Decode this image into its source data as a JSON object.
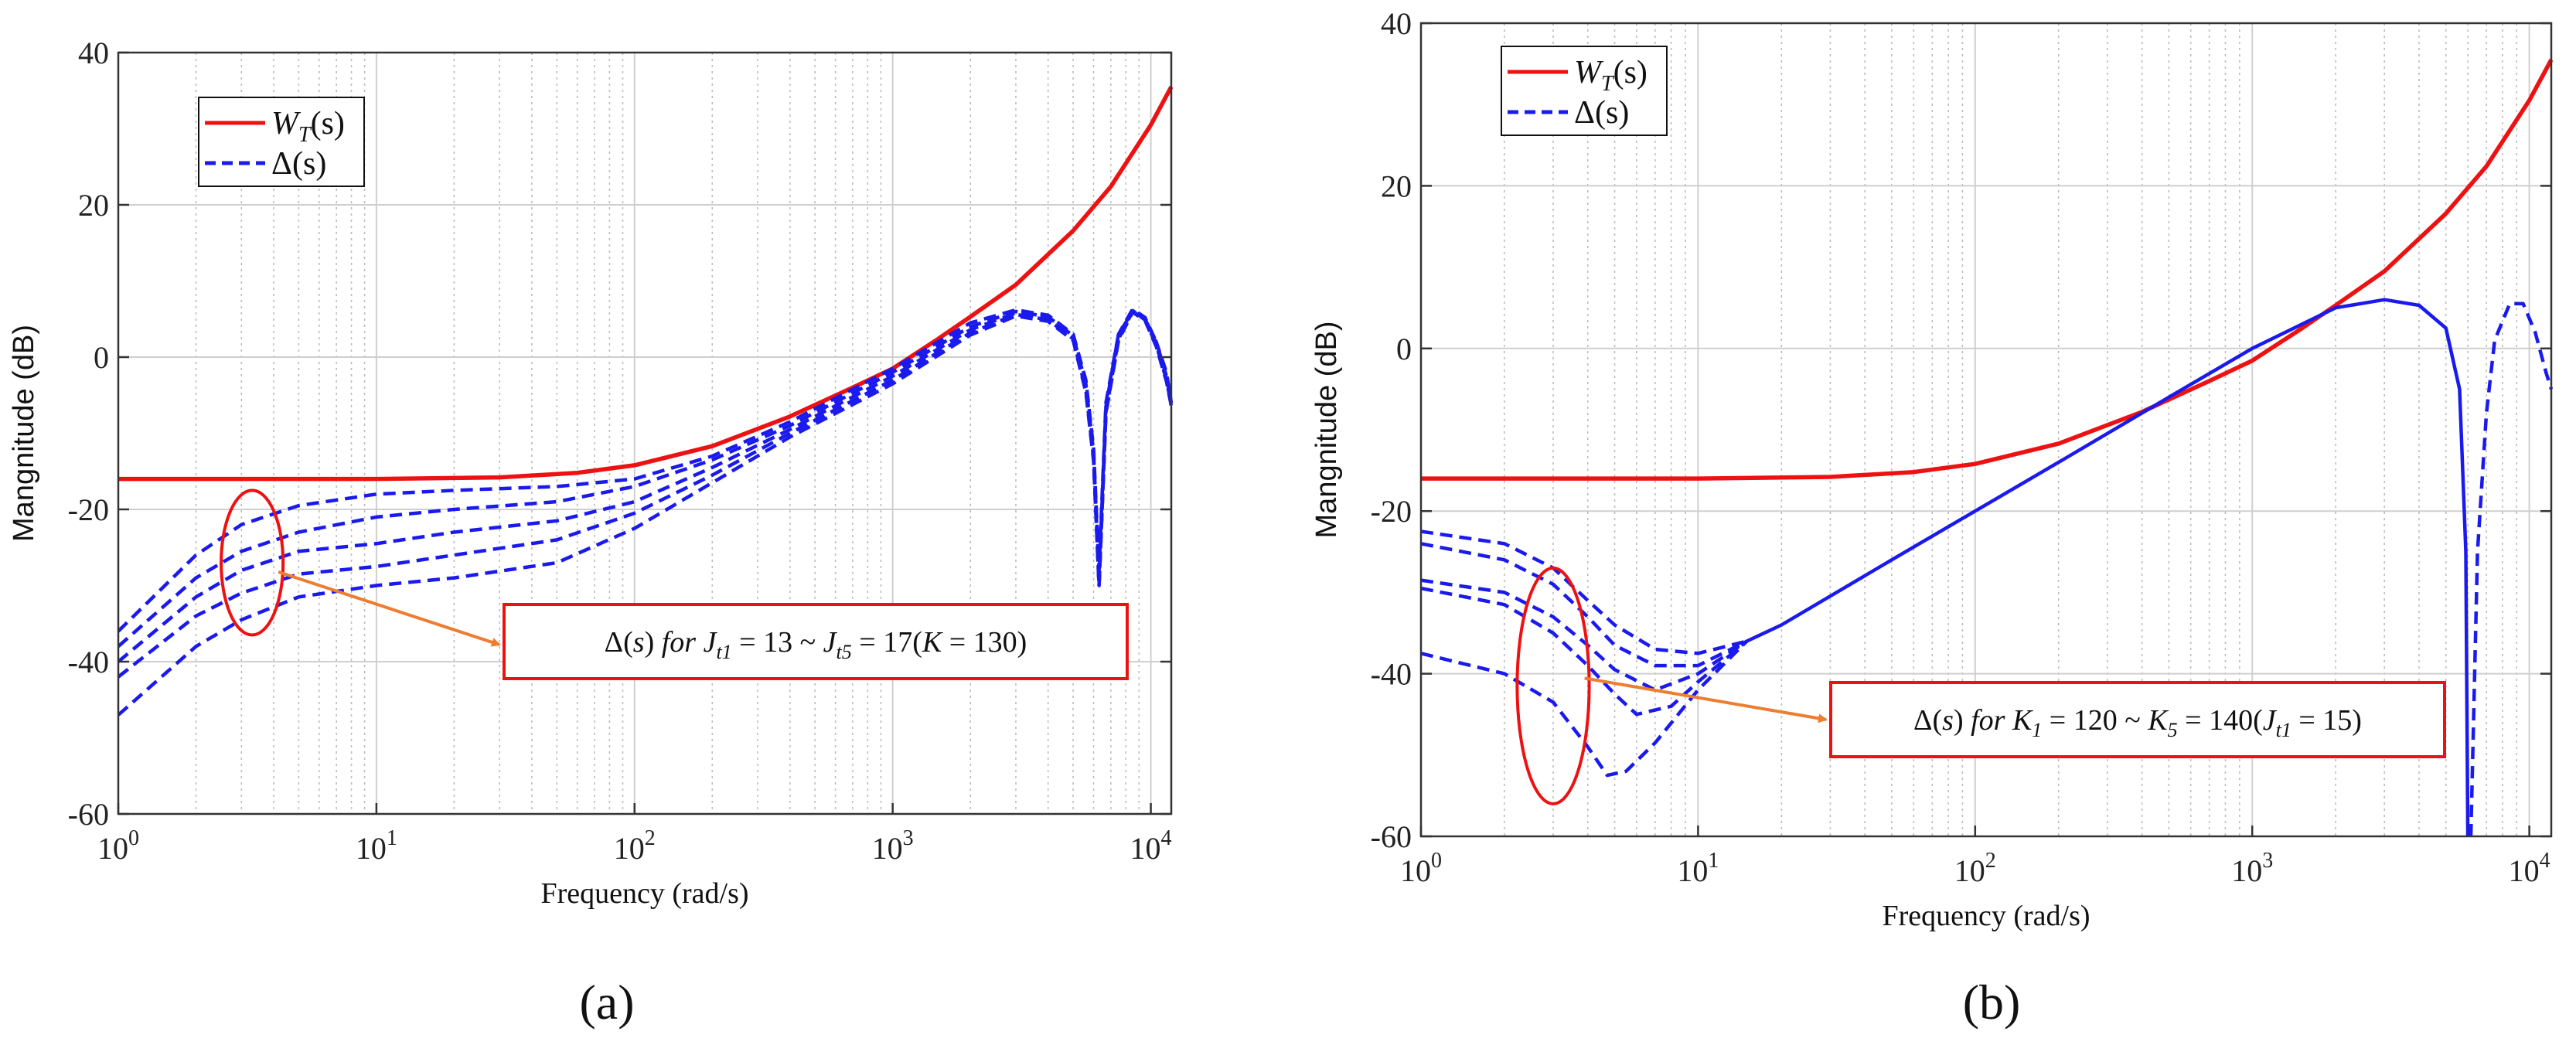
{
  "colors": {
    "wt": "#ee1111",
    "delta": "#1a1aee",
    "arrow": "#ed7d31",
    "grid_major": "#cfcfcf",
    "grid_minor": "#bdbdbd",
    "axis": "#333333"
  },
  "chart_data": [
    {
      "type": "line",
      "panel_label": "(a)",
      "xlabel": "Frequency  (rad/s)",
      "ylabel": "Mangnitude (dB)",
      "xscale": "log",
      "xlim": [
        1,
        12000
      ],
      "ylim": [
        -60,
        40
      ],
      "yticks": [
        40,
        20,
        0,
        -20,
        -40,
        -60
      ],
      "ytick_labels": [
        "40",
        "20",
        "0",
        "-20",
        "-40",
        "-60"
      ],
      "xticks": [
        1,
        10,
        100,
        1000,
        10000
      ],
      "xtick_labels": [
        {
          "base": "10",
          "exp": "0"
        },
        {
          "base": "10",
          "exp": "1"
        },
        {
          "base": "10",
          "exp": "2"
        },
        {
          "base": "10",
          "exp": "3"
        },
        {
          "base": "10",
          "exp": "4"
        }
      ],
      "grid": true,
      "legend": {
        "placement": "top-left",
        "entries": [
          {
            "label_main": "W",
            "label_sub": "T",
            "label_tail": "(s)",
            "style": "solid",
            "color": "#ee1111"
          },
          {
            "label_main": "Δ(s)",
            "label_sub": "",
            "label_tail": "",
            "style": "dashed",
            "color": "#1a1aee"
          }
        ]
      },
      "annotation": {
        "text": "Δ(s)  for  J_t1 = 13 ~ J_t5 = 17(K = 130)",
        "parts": [
          {
            "t": "Δ(",
            "style": "normal"
          },
          {
            "t": "s",
            "style": "italic"
          },
          {
            "t": ")  ",
            "style": "normal"
          },
          {
            "t": "for  J",
            "style": "italic"
          },
          {
            "t": "t1",
            "style": "sub"
          },
          {
            "t": " = 13 ~ ",
            "style": "normal"
          },
          {
            "t": "J",
            "style": "italic"
          },
          {
            "t": "t5",
            "style": "sub"
          },
          {
            "t": " = 17(",
            "style": "normal"
          },
          {
            "t": "K",
            "style": "italic"
          },
          {
            "t": " = 130)",
            "style": "normal"
          }
        ],
        "ellipse_center": [
          3.3,
          -27
        ],
        "ellipse_decades_half_width": 0.12,
        "ellipse_db_half_height": 9.5
      },
      "series": [
        {
          "name": "W_T(s)",
          "style": "solid",
          "color": "#ee1111",
          "x": [
            1,
            3,
            10,
            30,
            60,
            100,
            200,
            400,
            700,
            1000,
            1500,
            2000,
            3000,
            5000,
            7000,
            10000,
            12000
          ],
          "y": [
            -16,
            -16,
            -16,
            -15.8,
            -15.2,
            -14.2,
            -11.7,
            -7.8,
            -4.0,
            -1.5,
            2.4,
            5.3,
            9.5,
            16.6,
            22.4,
            30.5,
            35.5
          ]
        },
        {
          "name": "Δ(s) J_t1=13",
          "style": "dashed",
          "color": "#1a1aee",
          "x": [
            1,
            2,
            3,
            5,
            10,
            20,
            50,
            100,
            200,
            400,
            1000,
            2000,
            3000,
            4000,
            5000,
            5600,
            6000,
            6300,
            6700,
            7500,
            8500,
            9500,
            10500,
            11500,
            12000
          ],
          "y": [
            -36,
            -26,
            -22,
            -19.5,
            -18,
            -17.5,
            -17,
            -16,
            -13,
            -8.5,
            -1.5,
            4.5,
            6.2,
            5.5,
            3,
            -3,
            -12,
            -28,
            -6,
            3,
            6,
            5,
            2,
            -2,
            -6
          ]
        },
        {
          "name": "Δ(s) J_t2=14",
          "style": "dashed",
          "color": "#1a1aee",
          "x": [
            1,
            2,
            3,
            5,
            10,
            20,
            50,
            100,
            200,
            400,
            1000,
            2000,
            3000,
            4000,
            5000,
            5600,
            6000,
            6300,
            6700,
            7500,
            8500,
            9500,
            10500,
            11500,
            12000
          ],
          "y": [
            -38,
            -29,
            -25.5,
            -23,
            -21,
            -20,
            -19,
            -17,
            -13.5,
            -9,
            -2,
            4,
            6,
            5.3,
            2.8,
            -3.5,
            -12.5,
            -29,
            -6.5,
            3,
            6.3,
            5.2,
            2,
            -2.5,
            -6
          ]
        },
        {
          "name": "Δ(s) J_t3=15",
          "style": "dashed",
          "color": "#1a1aee",
          "x": [
            1,
            2,
            3,
            5,
            10,
            20,
            50,
            100,
            200,
            400,
            1000,
            2000,
            3000,
            4000,
            5000,
            5600,
            6000,
            6300,
            6700,
            7500,
            8500,
            9500,
            10500,
            11500,
            12000
          ],
          "y": [
            -40,
            -31.5,
            -28,
            -25.5,
            -24.5,
            -23,
            -21.5,
            -19,
            -14.5,
            -9.5,
            -2.5,
            3.6,
            5.8,
            5.1,
            2.6,
            -4,
            -13,
            -30,
            -7,
            2.6,
            6.1,
            5,
            1.8,
            -2.8,
            -6.2
          ]
        },
        {
          "name": "Δ(s) J_t4=16",
          "style": "dashed",
          "color": "#1a1aee",
          "x": [
            1,
            2,
            3,
            5,
            10,
            20,
            50,
            100,
            200,
            400,
            1000,
            2000,
            3000,
            4000,
            5000,
            5600,
            6000,
            6300,
            6700,
            7500,
            8500,
            9500,
            10500,
            11500,
            12000
          ],
          "y": [
            -42,
            -34,
            -31,
            -28.5,
            -27.5,
            -26,
            -24,
            -20.5,
            -15.5,
            -10,
            -3,
            3.2,
            5.6,
            4.9,
            2.4,
            -4.3,
            -13.3,
            -30,
            -7.2,
            2.4,
            6,
            4.9,
            1.6,
            -3,
            -6.3
          ]
        },
        {
          "name": "Δ(s) J_t5=17",
          "style": "dashed",
          "color": "#1a1aee",
          "x": [
            1,
            2,
            3,
            5,
            10,
            20,
            50,
            100,
            200,
            400,
            1000,
            2000,
            3000,
            4000,
            5000,
            5600,
            6000,
            6300,
            6700,
            7500,
            8500,
            9500,
            10500,
            11500,
            12000
          ],
          "y": [
            -47,
            -38,
            -34.5,
            -31.5,
            -30,
            -29,
            -27,
            -22.5,
            -16.5,
            -10.5,
            -3.5,
            2.9,
            5.4,
            4.7,
            2.2,
            -4.6,
            -13.6,
            -30,
            -7.4,
            2.2,
            5.9,
            4.8,
            1.4,
            -3.2,
            -6.4
          ]
        }
      ]
    },
    {
      "type": "line",
      "panel_label": "(b)",
      "xlabel": "Frequency  (rad/s)",
      "ylabel": "Mangnitude (dB)",
      "xscale": "log",
      "xlim": [
        1,
        12000
      ],
      "ylim": [
        -60,
        40
      ],
      "yticks": [
        40,
        20,
        0,
        -20,
        -40,
        -60
      ],
      "ytick_labels": [
        "40",
        "20",
        "0",
        "-20",
        "-40",
        "-60"
      ],
      "xticks": [
        1,
        10,
        100,
        1000,
        10000
      ],
      "xtick_labels": [
        {
          "base": "10",
          "exp": "0"
        },
        {
          "base": "10",
          "exp": "1"
        },
        {
          "base": "10",
          "exp": "2"
        },
        {
          "base": "10",
          "exp": "3"
        },
        {
          "base": "10",
          "exp": "4"
        }
      ],
      "grid": true,
      "legend": {
        "placement": "top-left",
        "entries": [
          {
            "label_main": "W",
            "label_sub": "T",
            "label_tail": "(s)",
            "style": "solid",
            "color": "#ee1111"
          },
          {
            "label_main": "Δ(s)",
            "label_sub": "",
            "label_tail": "",
            "style": "dashed",
            "color": "#1a1aee"
          }
        ]
      },
      "annotation": {
        "text": "Δ(s)  for  K_1 = 120 ~ K_5 = 140(J_t1 = 15)",
        "parts": [
          {
            "t": "Δ(",
            "style": "normal"
          },
          {
            "t": "s",
            "style": "italic"
          },
          {
            "t": ")  ",
            "style": "normal"
          },
          {
            "t": "for  K",
            "style": "italic"
          },
          {
            "t": "1",
            "style": "sub"
          },
          {
            "t": " = 120 ~ ",
            "style": "normal"
          },
          {
            "t": "K",
            "style": "italic"
          },
          {
            "t": "5",
            "style": "sub"
          },
          {
            "t": " = 140(",
            "style": "normal"
          },
          {
            "t": "J",
            "style": "italic"
          },
          {
            "t": "t1",
            "style": "sub"
          },
          {
            "t": " = 15)",
            "style": "normal"
          }
        ],
        "ellipse_center": [
          3.0,
          -41.5
        ],
        "ellipse_decades_half_width": 0.13,
        "ellipse_db_half height_note": "",
        "ellipse_db_half_height": 14.5
      },
      "series": [
        {
          "name": "W_T(s)",
          "style": "solid",
          "color": "#ee1111",
          "x": [
            1,
            3,
            10,
            30,
            60,
            100,
            200,
            400,
            700,
            1000,
            1500,
            2000,
            3000,
            5000,
            7000,
            10000,
            12000
          ],
          "y": [
            -16,
            -16,
            -16,
            -15.8,
            -15.2,
            -14.2,
            -11.7,
            -7.8,
            -4.0,
            -1.5,
            2.4,
            5.3,
            9.5,
            16.6,
            22.4,
            30.5,
            35.5
          ]
        },
        {
          "name": "Δ(s) common",
          "style": "solid",
          "color": "#1a1aee",
          "x": [
            15,
            20,
            50,
            100,
            200,
            500,
            1000,
            2000,
            3000,
            4000,
            5000,
            5600,
            5900,
            6000
          ],
          "y": [
            -36,
            -34,
            -26,
            -20,
            -14,
            -6,
            0,
            5,
            6,
            5.3,
            2.5,
            -5,
            -25,
            -60
          ]
        },
        {
          "name": "Δ(s) K1=120",
          "style": "dashed",
          "color": "#1a1aee",
          "x": [
            1,
            2,
            3,
            4,
            5,
            7,
            10,
            15
          ],
          "y": [
            -22.5,
            -24,
            -27,
            -31,
            -34,
            -37,
            -37.5,
            -36
          ]
        },
        {
          "name": "Δ(s) K2=125",
          "style": "dashed",
          "color": "#1a1aee",
          "x": [
            1,
            2,
            3,
            4,
            5,
            7,
            10,
            15
          ],
          "y": [
            -24,
            -26,
            -29,
            -33,
            -36.5,
            -39,
            -39,
            -36
          ]
        },
        {
          "name": "Δ(s) K3=130",
          "style": "dashed",
          "color": "#1a1aee",
          "x": [
            1,
            2,
            3,
            4,
            5,
            7,
            10,
            15
          ],
          "y": [
            -28.5,
            -30,
            -33,
            -36.5,
            -39.5,
            -42,
            -40,
            -36
          ]
        },
        {
          "name": "Δ(s) K4=135",
          "style": "dashed",
          "color": "#1a1aee",
          "x": [
            1,
            2,
            3,
            4,
            5,
            6,
            8,
            10,
            15
          ],
          "y": [
            -29.5,
            -31.5,
            -35,
            -39,
            -42.5,
            -45,
            -44,
            -41,
            -36
          ]
        },
        {
          "name": "Δ(s) K5=140",
          "style": "dashed",
          "color": "#1a1aee",
          "x": [
            1,
            2,
            3,
            4,
            4.7,
            5.5,
            7,
            10,
            15
          ],
          "y": [
            -37.5,
            -40,
            -43.5,
            -49,
            -52.5,
            -52,
            -48.5,
            -42,
            -36
          ]
        },
        {
          "name": "Δ(s) high-frequency",
          "style": "dashed",
          "color": "#1a1aee",
          "x": [
            6150,
            6500,
            7000,
            7500,
            8500,
            9500,
            10500,
            11500,
            12000
          ],
          "y": [
            -60,
            -25,
            -8,
            1,
            5.5,
            5.5,
            2,
            -3,
            -5
          ]
        }
      ]
    }
  ]
}
